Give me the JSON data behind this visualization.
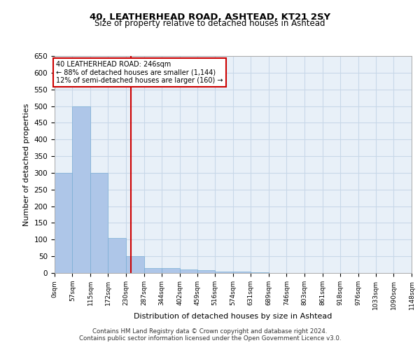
{
  "title1": "40, LEATHERHEAD ROAD, ASHTEAD, KT21 2SY",
  "title2": "Size of property relative to detached houses in Ashtead",
  "xlabel": "Distribution of detached houses by size in Ashtead",
  "ylabel": "Number of detached properties",
  "bar_edges": [
    0,
    57,
    115,
    172,
    230,
    287,
    344,
    402,
    459,
    516,
    574,
    631,
    689,
    746,
    803,
    861,
    918,
    976,
    1033,
    1090,
    1148
  ],
  "bar_heights": [
    300,
    500,
    300,
    105,
    50,
    15,
    15,
    10,
    8,
    5,
    5,
    2,
    0,
    1,
    0,
    0,
    0,
    1,
    0,
    1
  ],
  "bar_color": "#aec6e8",
  "bar_edgecolor": "#7aaed4",
  "grid_color": "#c8d8e8",
  "bg_color": "#e8f0f8",
  "vline_x": 246,
  "vline_color": "#cc0000",
  "annotation_text": "40 LEATHERHEAD ROAD: 246sqm\n← 88% of detached houses are smaller (1,144)\n12% of semi-detached houses are larger (160) →",
  "annotation_box_color": "#ffffff",
  "annotation_box_edgecolor": "#cc0000",
  "ylim": [
    0,
    650
  ],
  "yticks": [
    0,
    50,
    100,
    150,
    200,
    250,
    300,
    350,
    400,
    450,
    500,
    550,
    600,
    650
  ],
  "tick_labels": [
    "0sqm",
    "57sqm",
    "115sqm",
    "172sqm",
    "230sqm",
    "287sqm",
    "344sqm",
    "402sqm",
    "459sqm",
    "516sqm",
    "574sqm",
    "631sqm",
    "689sqm",
    "746sqm",
    "803sqm",
    "861sqm",
    "918sqm",
    "976sqm",
    "1033sqm",
    "1090sqm",
    "1148sqm"
  ],
  "footnote1": "Contains HM Land Registry data © Crown copyright and database right 2024.",
  "footnote2": "Contains public sector information licensed under the Open Government Licence v3.0."
}
